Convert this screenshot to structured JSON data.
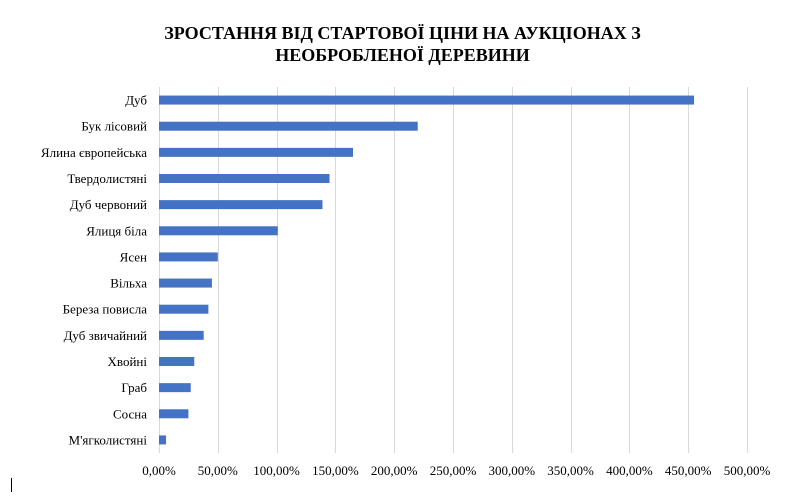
{
  "chart_data": {
    "type": "bar",
    "orientation": "horizontal",
    "title": "ЗРОСТАННЯ ВІД СТАРТОВОЇ ЦІНИ НА АУКЦІОНАХ З НЕОБРОБЛЕНОЇ ДЕРЕВИНИ",
    "categories": [
      "Дуб",
      "Бук лісовий",
      "Ялина європейська",
      "Твердолистяні",
      "Дуб червоний",
      "Ялиця біла",
      "Ясен",
      "Вільха",
      "Береза повисла",
      "Дуб звичайний",
      "Хвойні",
      "Граб",
      "Сосна",
      "М'ягколистяні"
    ],
    "values": [
      455,
      220,
      165,
      145,
      139,
      101,
      50,
      45,
      42,
      38,
      30,
      27,
      25,
      6
    ],
    "value_unit": "%",
    "xlim": [
      0,
      500
    ],
    "x_ticks": [
      0,
      50,
      100,
      150,
      200,
      250,
      300,
      350,
      400,
      450,
      500
    ],
    "x_tick_labels": [
      "0,00%",
      "50,00%",
      "100,00%",
      "150,00%",
      "200,00%",
      "250,00%",
      "300,00%",
      "350,00%",
      "400,00%",
      "450,00%",
      "500,00%"
    ],
    "grid": true,
    "bar_color": "#4472c4",
    "grid_color": "#d9d9d9",
    "legend": "none"
  }
}
